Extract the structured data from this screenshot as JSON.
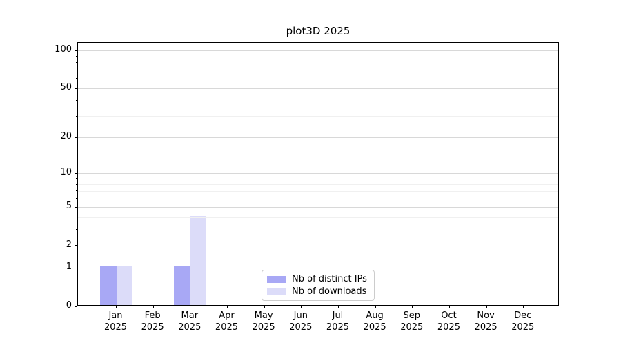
{
  "title": "plot3D 2025",
  "chart_data": {
    "type": "bar",
    "title": "plot3D 2025",
    "categories": [
      "Jan",
      "Feb",
      "Mar",
      "Apr",
      "May",
      "Jun",
      "Jul",
      "Aug",
      "Sep",
      "Oct",
      "Nov",
      "Dec"
    ],
    "category_year": "2025",
    "series": [
      {
        "name": "Nb of distinct IPs",
        "color": "#a8a8f5",
        "values": [
          1,
          0,
          1,
          0,
          0,
          0,
          0,
          0,
          0,
          0,
          0,
          0
        ]
      },
      {
        "name": "Nb of downloads",
        "color": "#dcdcf9",
        "values": [
          1,
          0,
          4,
          0,
          0,
          0,
          0,
          0,
          0,
          0,
          0,
          0
        ]
      }
    ],
    "y_scale": "log1p",
    "y_ticks": [
      0,
      1,
      2,
      5,
      10,
      20,
      50,
      100
    ],
    "y_minor_ticks": [
      3,
      4,
      6,
      7,
      8,
      9,
      30,
      40,
      60,
      70,
      80,
      90
    ],
    "ylim": [
      0,
      115
    ],
    "xlabel": "",
    "ylabel": "",
    "grid": true,
    "legend": {
      "position": "lower center"
    },
    "colors": {
      "grid_major": "#d8d8d8",
      "grid_minor": "#f0f0f0",
      "axis": "#000000",
      "background": "#ffffff",
      "legend_border": "#cccccc"
    }
  }
}
